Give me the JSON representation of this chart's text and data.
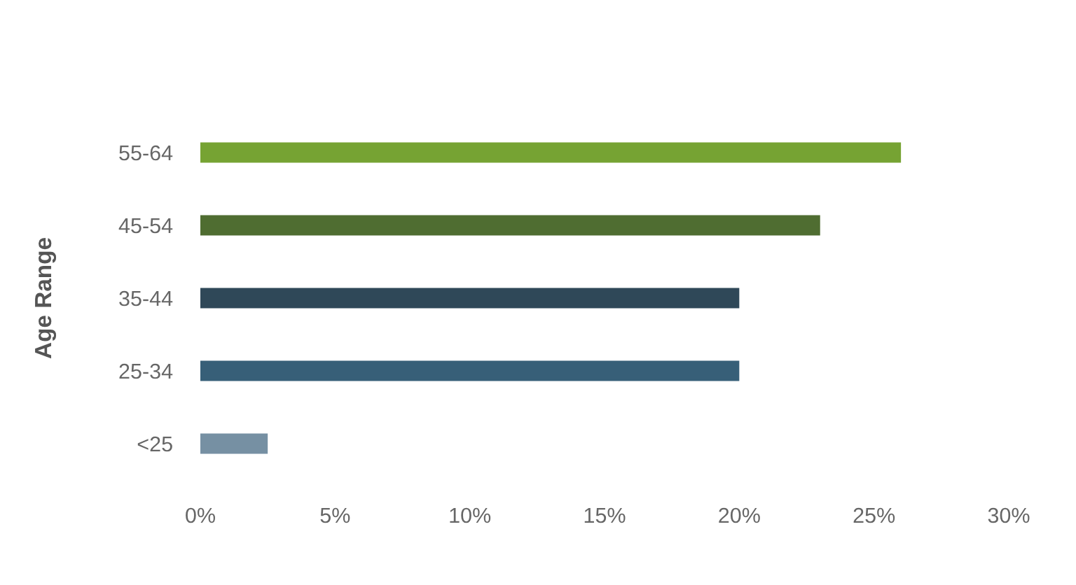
{
  "chart_data": {
    "type": "bar",
    "orientation": "horizontal",
    "ylabel": "Age Range",
    "categories": [
      "55-64",
      "45-54",
      "35-44",
      "25-34",
      "<25"
    ],
    "values": [
      26,
      23,
      20,
      20,
      2.5
    ],
    "colors": [
      "#76a333",
      "#4f6d31",
      "#2f4858",
      "#375f78",
      "#7690a3"
    ],
    "xlim": [
      0,
      30
    ],
    "xticks": [
      {
        "value": 0,
        "label": "0%"
      },
      {
        "value": 5,
        "label": "5%"
      },
      {
        "value": 10,
        "label": "10%"
      },
      {
        "value": 15,
        "label": "15%"
      },
      {
        "value": 20,
        "label": "20%"
      },
      {
        "value": 25,
        "label": "25%"
      },
      {
        "value": 30,
        "label": "30%"
      }
    ],
    "grid": false
  }
}
